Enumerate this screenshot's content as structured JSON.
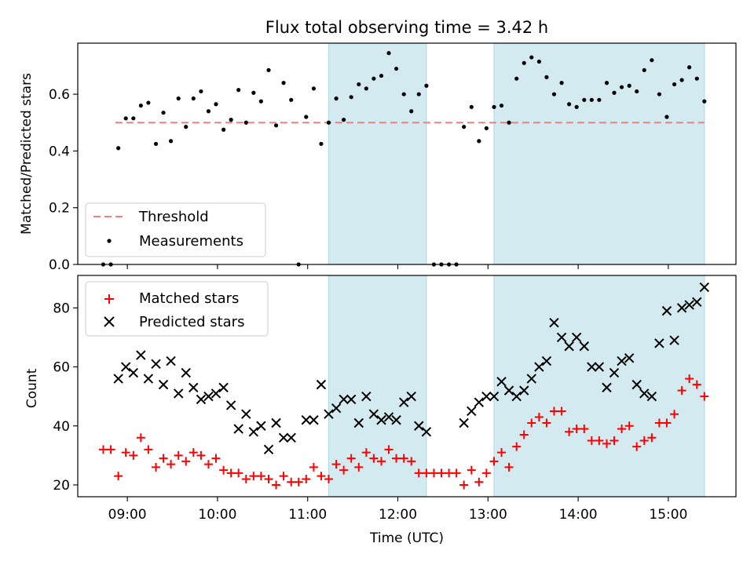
{
  "chart_data": [
    {
      "type": "scatter",
      "title": "Flux total observing time = 3.42 h",
      "xlabel": "",
      "ylabel": "Matched/Predicted stars",
      "xlim": [
        8.45,
        15.75
      ],
      "ylim": [
        0.0,
        0.78
      ],
      "yticks": [
        0.0,
        0.2,
        0.4,
        0.6
      ],
      "ytick_labels": [
        "0.0",
        "0.2",
        "0.4",
        "0.6"
      ],
      "xtick_values": [
        9,
        10,
        11,
        12,
        13,
        14,
        15
      ],
      "grid": false,
      "legend_position": "lower-left",
      "shaded_intervals": [
        [
          11.233,
          12.317
        ],
        [
          13.067,
          15.4
        ]
      ],
      "shade_color": "#d3eaf1",
      "threshold": {
        "name": "Threshold",
        "value": 0.5,
        "x_range": [
          8.867,
          15.4
        ],
        "color": "#f08080"
      },
      "series": [
        {
          "name": "Measurements",
          "marker": "dot",
          "color": "#000000",
          "x": [
            8.733,
            8.817,
            8.9,
            8.983,
            9.067,
            9.15,
            9.233,
            9.317,
            9.4,
            9.483,
            9.567,
            9.65,
            9.733,
            9.817,
            9.9,
            9.983,
            10.067,
            10.15,
            10.233,
            10.317,
            10.4,
            10.483,
            10.567,
            10.65,
            10.733,
            10.817,
            10.9,
            10.983,
            11.067,
            11.15,
            11.233,
            11.317,
            11.4,
            11.483,
            11.567,
            11.65,
            11.733,
            11.817,
            11.9,
            11.983,
            12.067,
            12.15,
            12.233,
            12.317,
            12.4,
            12.483,
            12.567,
            12.65,
            12.733,
            12.817,
            12.9,
            12.983,
            13.067,
            13.15,
            13.233,
            13.317,
            13.4,
            13.483,
            13.567,
            13.65,
            13.733,
            13.817,
            13.9,
            13.983,
            14.067,
            14.15,
            14.233,
            14.317,
            14.4,
            14.483,
            14.567,
            14.65,
            14.733,
            14.817,
            14.9,
            14.983,
            15.067,
            15.15,
            15.233,
            15.317,
            15.4
          ],
          "y": [
            0.0,
            0.0,
            0.41,
            0.515,
            0.515,
            0.56,
            0.57,
            0.425,
            0.535,
            0.435,
            0.585,
            0.485,
            0.585,
            0.61,
            0.54,
            0.565,
            0.475,
            0.51,
            0.615,
            0.5,
            0.605,
            0.575,
            0.685,
            0.49,
            0.64,
            0.58,
            0.0,
            0.52,
            0.62,
            0.425,
            0.5,
            0.585,
            0.51,
            0.59,
            0.635,
            0.62,
            0.655,
            0.665,
            0.745,
            0.69,
            0.6,
            0.54,
            0.6,
            0.63,
            0.0,
            0.0,
            0.0,
            0.0,
            0.485,
            0.555,
            0.435,
            0.48,
            0.555,
            0.56,
            0.5,
            0.655,
            0.71,
            0.73,
            0.715,
            0.66,
            0.6,
            0.64,
            0.565,
            0.555,
            0.58,
            0.58,
            0.58,
            0.64,
            0.605,
            0.625,
            0.63,
            0.61,
            0.685,
            0.72,
            0.6,
            0.52,
            0.635,
            0.65,
            0.695,
            0.655,
            0.575
          ]
        }
      ],
      "legend": [
        "Threshold",
        "Measurements"
      ]
    },
    {
      "type": "scatter",
      "title": "",
      "xlabel": "Time (UTC)",
      "ylabel": "Count",
      "xlim": [
        8.45,
        15.75
      ],
      "ylim": [
        16,
        91
      ],
      "yticks": [
        20,
        40,
        60,
        80
      ],
      "ytick_labels": [
        "20",
        "40",
        "60",
        "80"
      ],
      "xtick_values": [
        9,
        10,
        11,
        12,
        13,
        14,
        15
      ],
      "xtick_labels": [
        "09:00",
        "10:00",
        "11:00",
        "12:00",
        "13:00",
        "14:00",
        "15:00"
      ],
      "grid": false,
      "legend_position": "upper-left",
      "shaded_intervals": [
        [
          11.233,
          12.317
        ],
        [
          13.067,
          15.4
        ]
      ],
      "shade_color": "#d3eaf1",
      "series": [
        {
          "name": "Matched stars",
          "marker": "plus",
          "color": "#ff0000",
          "x": [
            8.733,
            8.817,
            8.9,
            8.983,
            9.067,
            9.15,
            9.233,
            9.317,
            9.4,
            9.483,
            9.567,
            9.65,
            9.733,
            9.817,
            9.9,
            9.983,
            10.067,
            10.15,
            10.233,
            10.317,
            10.4,
            10.483,
            10.567,
            10.65,
            10.733,
            10.817,
            10.9,
            10.983,
            11.067,
            11.15,
            11.233,
            11.317,
            11.4,
            11.483,
            11.567,
            11.65,
            11.733,
            11.817,
            11.9,
            11.983,
            12.067,
            12.15,
            12.233,
            12.317,
            12.4,
            12.483,
            12.567,
            12.65,
            12.733,
            12.817,
            12.9,
            12.983,
            13.067,
            13.15,
            13.233,
            13.317,
            13.4,
            13.483,
            13.567,
            13.65,
            13.733,
            13.817,
            13.9,
            13.983,
            14.067,
            14.15,
            14.233,
            14.317,
            14.4,
            14.483,
            14.567,
            14.65,
            14.733,
            14.817,
            14.9,
            14.983,
            15.067,
            15.15,
            15.233,
            15.317,
            15.4
          ],
          "y": [
            32,
            32,
            23,
            31,
            30,
            36,
            32,
            26,
            29,
            27,
            30,
            28,
            31,
            30,
            27,
            29,
            25,
            24,
            24,
            22,
            23,
            23,
            22,
            20,
            23,
            21,
            21,
            22,
            26,
            23,
            22,
            27,
            25,
            29,
            26,
            31,
            29,
            28,
            32,
            29,
            29,
            28,
            24,
            24,
            24,
            24,
            24,
            24,
            20,
            25,
            21,
            24,
            28,
            31,
            26,
            33,
            37,
            41,
            43,
            41,
            45,
            45,
            38,
            39,
            39,
            35,
            35,
            34,
            35,
            39,
            40,
            33,
            35,
            36,
            41,
            41,
            44,
            52,
            56,
            54,
            50
          ]
        },
        {
          "name": "Predicted stars",
          "marker": "x",
          "color": "#000000",
          "x": [
            8.9,
            8.983,
            9.067,
            9.15,
            9.233,
            9.317,
            9.4,
            9.483,
            9.567,
            9.65,
            9.733,
            9.817,
            9.9,
            9.983,
            10.067,
            10.15,
            10.233,
            10.317,
            10.4,
            10.483,
            10.567,
            10.65,
            10.733,
            10.817,
            10.983,
            11.067,
            11.15,
            11.233,
            11.317,
            11.4,
            11.483,
            11.567,
            11.65,
            11.733,
            11.817,
            11.9,
            11.983,
            12.067,
            12.15,
            12.233,
            12.317,
            12.733,
            12.817,
            12.9,
            12.983,
            13.067,
            13.15,
            13.233,
            13.317,
            13.4,
            13.483,
            13.567,
            13.65,
            13.733,
            13.817,
            13.9,
            13.983,
            14.067,
            14.15,
            14.233,
            14.317,
            14.4,
            14.483,
            14.567,
            14.65,
            14.733,
            14.817,
            14.9,
            14.983,
            15.067,
            15.15,
            15.233,
            15.317,
            15.4
          ],
          "y": [
            56,
            60,
            58,
            64,
            56,
            61,
            54,
            62,
            51,
            58,
            53,
            49,
            50,
            51,
            53,
            47,
            39,
            44,
            38,
            40,
            32,
            41,
            36,
            36,
            42,
            42,
            54,
            44,
            46,
            49,
            49,
            41,
            50,
            44,
            42,
            43,
            42,
            48,
            50,
            40,
            38,
            41,
            45,
            48,
            50,
            50,
            55,
            52,
            50,
            52,
            56,
            60,
            62,
            75,
            70,
            67,
            70,
            67,
            60,
            60,
            53,
            58,
            62,
            63,
            54,
            51,
            50,
            68,
            79,
            69,
            80,
            81,
            82,
            87
          ]
        }
      ],
      "legend": [
        "Matched stars",
        "Predicted stars"
      ]
    }
  ]
}
